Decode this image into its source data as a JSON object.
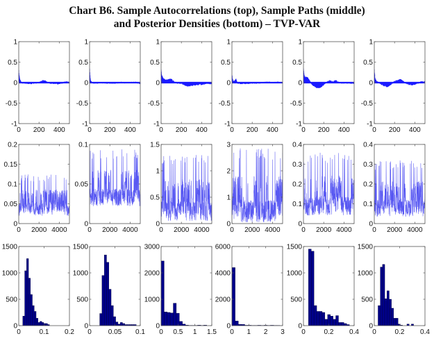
{
  "title": {
    "line1": "Chart B6. Sample Autocorrelations (top), Sample Paths (middle)",
    "line2": "and Posterior Densities (bottom) – TVP-VAR"
  },
  "colors": {
    "acf": "#1a1aff",
    "path": "#3b3bf0",
    "hist_fill": "#00008b",
    "axis": "#555555"
  },
  "chart_data": [
    {
      "row": "top",
      "col": 1,
      "type": "area",
      "xlim": [
        0,
        500
      ],
      "ylim": [
        -1,
        1
      ],
      "xticks": [
        "0",
        "200",
        "400"
      ],
      "yticks": [
        "-1",
        "-0.5",
        "0",
        "0.5",
        "1"
      ],
      "series": {
        "x": [
          0,
          5,
          10,
          20,
          40,
          80,
          120,
          160,
          200,
          230,
          250,
          270,
          300,
          350,
          400,
          440,
          470,
          500
        ],
        "y": [
          0.3,
          0.15,
          0.08,
          0.02,
          -0.01,
          -0.02,
          -0.02,
          -0.01,
          0,
          0.04,
          0.05,
          0.03,
          -0.01,
          -0.02,
          -0.03,
          0,
          0.02,
          0
        ]
      }
    },
    {
      "row": "top",
      "col": 2,
      "type": "area",
      "xlim": [
        0,
        500
      ],
      "ylim": [
        -1,
        1
      ],
      "xticks": [
        "0",
        "200",
        "400"
      ],
      "yticks": [
        "-1",
        "-0.5",
        "0",
        "0.5",
        "1"
      ],
      "series": {
        "x": [
          0,
          5,
          10,
          20,
          40,
          80,
          120,
          160,
          200,
          250,
          300,
          320,
          350,
          400,
          450,
          500
        ],
        "y": [
          0.35,
          0.12,
          0.04,
          0.01,
          -0.01,
          -0.01,
          0,
          -0.01,
          -0.01,
          -0.01,
          0,
          0.01,
          -0.01,
          0,
          0.01,
          -0.02
        ]
      }
    },
    {
      "row": "top",
      "col": 3,
      "type": "area",
      "xlim": [
        0,
        500
      ],
      "ylim": [
        -1,
        1
      ],
      "xticks": [
        "0",
        "200",
        "400"
      ],
      "yticks": [
        "-1",
        "-0.5",
        "0",
        "0.5",
        "1"
      ],
      "series": {
        "x": [
          0,
          5,
          10,
          20,
          40,
          60,
          80,
          100,
          130,
          160,
          200,
          230,
          260,
          300,
          350,
          400,
          450,
          500
        ],
        "y": [
          0.32,
          0.2,
          0.15,
          0.1,
          0.07,
          0.06,
          0.08,
          0.08,
          0.02,
          -0.01,
          -0.02,
          -0.06,
          -0.08,
          -0.07,
          -0.05,
          -0.04,
          -0.02,
          -0.02
        ]
      }
    },
    {
      "row": "top",
      "col": 4,
      "type": "area",
      "xlim": [
        0,
        500
      ],
      "ylim": [
        -1,
        1
      ],
      "xticks": [
        "0",
        "200",
        "400"
      ],
      "yticks": [
        "-1",
        "-0.5",
        "0",
        "0.5",
        "1"
      ],
      "series": {
        "x": [
          0,
          5,
          10,
          20,
          30,
          40,
          50,
          60,
          80,
          120,
          160,
          200,
          250,
          300,
          350,
          400,
          450,
          500
        ],
        "y": [
          0.18,
          0.1,
          0.05,
          0.02,
          0.05,
          0.08,
          0.03,
          -0.01,
          -0.02,
          -0.02,
          -0.02,
          -0.01,
          -0.01,
          0,
          0.01,
          0,
          0.01,
          0
        ]
      }
    },
    {
      "row": "top",
      "col": 5,
      "type": "area",
      "xlim": [
        0,
        500
      ],
      "ylim": [
        -1,
        1
      ],
      "xticks": [
        "0",
        "200",
        "400"
      ],
      "yticks": [
        "-1",
        "-0.5",
        "0",
        "0.5",
        "1"
      ],
      "series": {
        "x": [
          0,
          5,
          10,
          20,
          40,
          60,
          80,
          100,
          130,
          160,
          190,
          220,
          260,
          280,
          320,
          350,
          400,
          450,
          500
        ],
        "y": [
          0.35,
          0.2,
          0.15,
          0.13,
          0.12,
          0.05,
          -0.03,
          -0.07,
          -0.12,
          -0.13,
          -0.07,
          -0.01,
          0.05,
          0.02,
          0.05,
          0,
          -0.01,
          -0.01,
          -0.01
        ]
      }
    },
    {
      "row": "top",
      "col": 6,
      "type": "area",
      "xlim": [
        0,
        500
      ],
      "ylim": [
        -1,
        1
      ],
      "xticks": [
        "0",
        "200",
        "400"
      ],
      "yticks": [
        "-1",
        "-0.5",
        "0",
        "0.5",
        "1"
      ],
      "series": {
        "x": [
          0,
          5,
          10,
          20,
          40,
          70,
          100,
          130,
          160,
          200,
          230,
          260,
          300,
          340,
          390,
          420,
          460,
          500
        ],
        "y": [
          0.33,
          0.15,
          0.08,
          0.04,
          0.02,
          -0.04,
          -0.08,
          -0.1,
          -0.05,
          0.03,
          0.05,
          0.08,
          0,
          -0.04,
          -0.06,
          -0.02,
          0.02,
          0.02
        ]
      }
    },
    {
      "row": "middle",
      "col": 1,
      "type": "line",
      "xlim": [
        0,
        5000
      ],
      "ylim": [
        0,
        0.2
      ],
      "xticks": [
        "0",
        "2000",
        "4000"
      ],
      "yticks": [
        "0",
        "0.05",
        "0.1",
        "0.15",
        "0.2"
      ],
      "level_range": [
        0.02,
        0.125
      ]
    },
    {
      "row": "middle",
      "col": 2,
      "type": "line",
      "xlim": [
        0,
        5000
      ],
      "ylim": [
        0,
        0.1
      ],
      "xticks": [
        "0",
        "2000",
        "4000"
      ],
      "yticks": [
        "0",
        "0.05",
        "0.1"
      ],
      "level_range": [
        0.022,
        0.095
      ]
    },
    {
      "row": "middle",
      "col": 3,
      "type": "line",
      "xlim": [
        0,
        5000
      ],
      "ylim": [
        0,
        1.5
      ],
      "xticks": [
        "0",
        "2000",
        "4000"
      ],
      "yticks": [
        "0",
        "0.5",
        "1",
        "1.5"
      ],
      "level_range": [
        0.05,
        1.3
      ]
    },
    {
      "row": "middle",
      "col": 4,
      "type": "line",
      "xlim": [
        0,
        5000
      ],
      "ylim": [
        0,
        3
      ],
      "xticks": [
        "0",
        "2000",
        "4000"
      ],
      "yticks": [
        "0",
        "1",
        "2",
        "3"
      ],
      "level_range": [
        0.05,
        2.85
      ]
    },
    {
      "row": "middle",
      "col": 5,
      "type": "line",
      "xlim": [
        0,
        5000
      ],
      "ylim": [
        0,
        0.4
      ],
      "xticks": [
        "0",
        "2000",
        "4000"
      ],
      "yticks": [
        "0",
        "0.1",
        "0.2",
        "0.3",
        "0.4"
      ],
      "level_range": [
        0.04,
        0.36
      ]
    },
    {
      "row": "middle",
      "col": 6,
      "type": "line",
      "xlim": [
        0,
        5000
      ],
      "ylim": [
        0,
        0.4
      ],
      "xticks": [
        "0",
        "2000",
        "4000"
      ],
      "yticks": [
        "0",
        "0.1",
        "0.2",
        "0.3",
        "0.4"
      ],
      "level_range": [
        0.035,
        0.32
      ]
    },
    {
      "row": "bottom",
      "col": 1,
      "type": "bar",
      "xlim": [
        0,
        0.2
      ],
      "ylim": [
        0,
        1500
      ],
      "xticks": [
        "0",
        "0.1",
        "0.2"
      ],
      "yticks": [
        "0",
        "500",
        "1000",
        "1500"
      ],
      "bins": {
        "start": 0.016,
        "width": 0.0075,
        "counts": [
          180,
          1040,
          1270,
          900,
          590,
          380,
          270,
          140,
          60,
          80,
          60,
          40,
          40,
          20
        ]
      }
    },
    {
      "row": "bottom",
      "col": 2,
      "type": "bar",
      "xlim": [
        0,
        0.1
      ],
      "ylim": [
        0,
        1500
      ],
      "xticks": [
        "0",
        "0.05",
        "0.1"
      ],
      "yticks": [
        "0",
        "500",
        "1000",
        "1500"
      ],
      "bins": {
        "start": 0.02,
        "width": 0.0045,
        "counts": [
          230,
          950,
          1340,
          1200,
          690,
          380,
          170,
          70,
          30,
          60,
          40,
          20,
          20,
          20,
          20,
          20
        ]
      }
    },
    {
      "row": "bottom",
      "col": 3,
      "type": "bar",
      "xlim": [
        0,
        1.5
      ],
      "ylim": [
        0,
        3000
      ],
      "xticks": [
        "0",
        "0.5",
        "1",
        "1.5"
      ],
      "yticks": [
        "0",
        "1000",
        "2000",
        "3000"
      ],
      "bins": {
        "start": 0.0,
        "width": 0.09,
        "counts": [
          2450,
          520,
          500,
          480,
          850,
          470,
          160,
          60,
          20,
          10,
          10,
          10,
          20,
          10,
          20
        ]
      }
    },
    {
      "row": "bottom",
      "col": 4,
      "type": "bar",
      "xlim": [
        0,
        3
      ],
      "ylim": [
        0,
        6000
      ],
      "xticks": [
        "0",
        "1",
        "2",
        "3"
      ],
      "yticks": [
        "0",
        "2000",
        "4000",
        "6000"
      ],
      "bins": {
        "start": 0.0,
        "width": 0.19,
        "counts": [
          4400,
          350,
          100,
          90,
          30,
          30,
          20,
          20,
          30,
          20,
          30,
          20,
          30,
          20,
          20
        ]
      }
    },
    {
      "row": "bottom",
      "col": 5,
      "type": "bar",
      "xlim": [
        0,
        0.4
      ],
      "ylim": [
        0,
        1500
      ],
      "xticks": [
        "0",
        "0.2",
        "0.4"
      ],
      "yticks": [
        "0",
        "500",
        "1000",
        "1500"
      ],
      "bins": {
        "start": 0.04,
        "width": 0.0215,
        "counts": [
          1450,
          1410,
          380,
          270,
          270,
          250,
          120,
          210,
          180,
          120,
          190,
          60,
          60,
          40,
          20
        ]
      }
    },
    {
      "row": "bottom",
      "col": 6,
      "type": "bar",
      "xlim": [
        0,
        0.4
      ],
      "ylim": [
        0,
        1500
      ],
      "xticks": [
        "0",
        "0.2",
        "0.4"
      ],
      "yticks": [
        "0",
        "500",
        "1000",
        "1500"
      ],
      "bins": {
        "start": 0.03,
        "width": 0.0175,
        "counts": [
          380,
          1110,
          1160,
          510,
          660,
          500,
          330,
          140,
          140,
          30,
          10,
          0,
          0,
          30,
          0,
          30
        ]
      }
    }
  ]
}
